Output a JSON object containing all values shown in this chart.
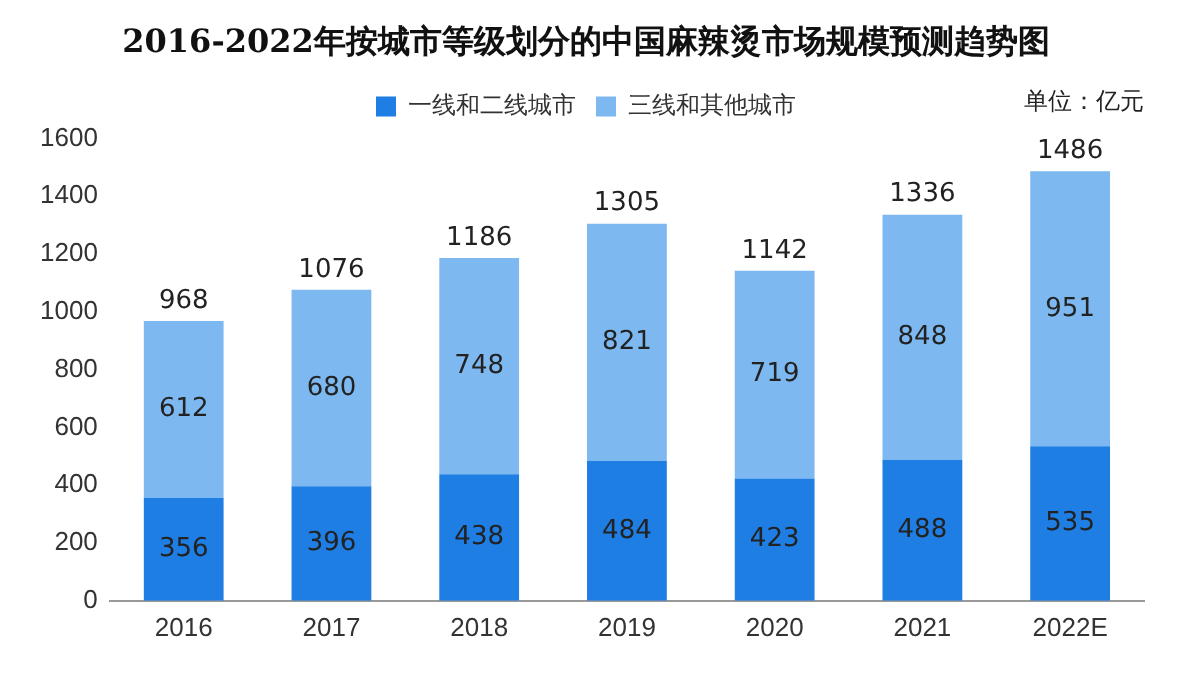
{
  "chart_data": {
    "type": "bar",
    "title": "2016-2022年按城市等级划分的中国麻辣烫市场规模预测趋势图",
    "annotations": [
      "单位：亿元"
    ],
    "categories": [
      "2016",
      "2017",
      "2018",
      "2019",
      "2020",
      "2021",
      "2022E"
    ],
    "series": [
      {
        "name": "一线和二线城市",
        "color": "#1f7ee3",
        "values": [
          356,
          396,
          438,
          484,
          423,
          488,
          535
        ]
      },
      {
        "name": "三线和其他城市",
        "color": "#7db9f0",
        "values": [
          612,
          680,
          748,
          821,
          719,
          848,
          951
        ]
      }
    ],
    "stacked": true,
    "data_labels": true,
    "totals": [
      "968",
      "1076",
      "1186",
      "1305",
      "1142",
      "1336",
      "1486"
    ],
    "ylim": [
      0,
      1600
    ],
    "yticks": [
      0,
      200,
      400,
      600,
      800,
      1000,
      1200,
      1400,
      1600
    ],
    "grid": false,
    "legend": "top"
  }
}
